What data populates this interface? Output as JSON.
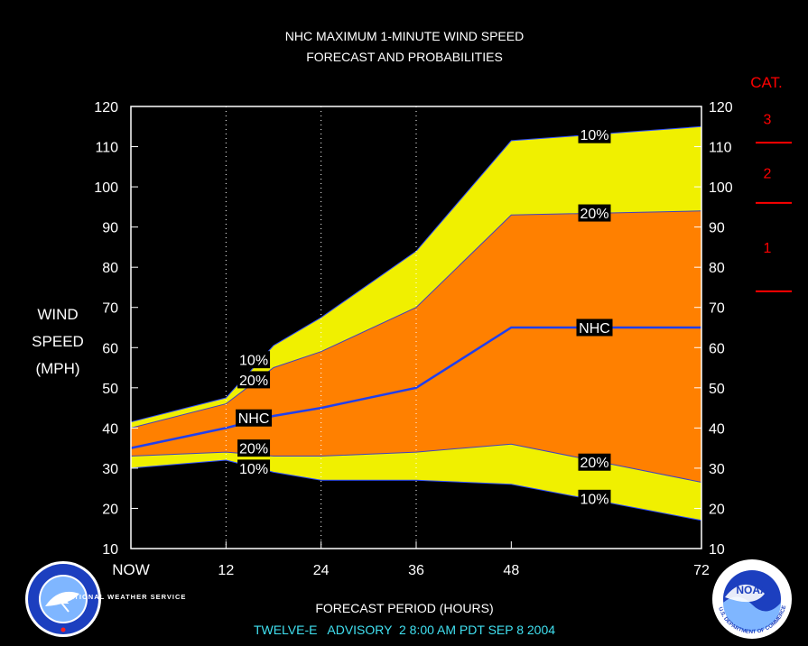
{
  "chart_data": {
    "type": "area",
    "title": "NHC MAXIMUM 1-MINUTE WIND SPEED",
    "subtitle": "FORECAST AND PROBABILITIES",
    "ylabel_lines": [
      "WIND",
      "SPEED",
      "(MPH)"
    ],
    "xlabel": "FORECAST PERIOD (HOURS)",
    "footer": "TWELVE-E   ADVISORY  2 8:00 AM PDT SEP 8 2004",
    "xlim": [
      0,
      72
    ],
    "ylim": [
      10,
      120
    ],
    "x_ticks": [
      {
        "x": 0,
        "label": "NOW"
      },
      {
        "x": 12,
        "label": "12"
      },
      {
        "x": 24,
        "label": "24"
      },
      {
        "x": 36,
        "label": "36"
      },
      {
        "x": 48,
        "label": "48"
      },
      {
        "x": 72,
        "label": "72"
      }
    ],
    "y_ticks": [
      10,
      20,
      30,
      40,
      50,
      60,
      70,
      80,
      90,
      100,
      110,
      120
    ],
    "vertical_dotted_gridlines_at": [
      12,
      24,
      36
    ],
    "x": [
      0,
      12,
      18,
      24,
      36,
      48,
      72
    ],
    "series": [
      {
        "name": "upper 10%",
        "values": [
          41.5,
          47.5,
          60.5,
          67.5,
          84,
          111.5,
          115
        ],
        "color": "#f0f000"
      },
      {
        "name": "upper 20%",
        "values": [
          40,
          46,
          55,
          59,
          70,
          93,
          94
        ],
        "color": "#ff8000"
      },
      {
        "name": "NHC",
        "values": [
          35,
          40,
          43,
          45,
          50,
          65,
          65
        ],
        "color": "#1f3ff0"
      },
      {
        "name": "lower 20%",
        "values": [
          33,
          34,
          33,
          33,
          34,
          36,
          26.5
        ],
        "color": "#ff8000"
      },
      {
        "name": "lower 10%",
        "values": [
          30,
          32,
          29,
          27,
          27,
          26,
          17
        ],
        "color": "#f0f000"
      }
    ],
    "labels": [
      {
        "text": "10%",
        "x": 15.5,
        "y": 57
      },
      {
        "text": "20%",
        "x": 15.5,
        "y": 52
      },
      {
        "text": "NHC",
        "x": 15.5,
        "y": 42.5
      },
      {
        "text": "20%",
        "x": 15.5,
        "y": 35
      },
      {
        "text": "10%",
        "x": 15.5,
        "y": 30
      },
      {
        "text": "10%",
        "x": 58.5,
        "y": 113
      },
      {
        "text": "20%",
        "x": 58.5,
        "y": 93.5
      },
      {
        "text": "NHC",
        "x": 58.5,
        "y": 65
      },
      {
        "text": "20%",
        "x": 58.5,
        "y": 31.5
      },
      {
        "text": "10%",
        "x": 58.5,
        "y": 22.5
      }
    ],
    "category_legend": {
      "title": "CAT.",
      "thresholds_mph": [
        74,
        96,
        111
      ],
      "category_labels": [
        {
          "label": "1",
          "y": 85
        },
        {
          "label": "2",
          "y": 103.5
        },
        {
          "label": "3",
          "y": 117
        }
      ],
      "color": "#ff0000"
    },
    "logos": {
      "left": {
        "name": "national-weather-service-seal",
        "text": "NATIONAL WEATHER SERVICE"
      },
      "right": {
        "name": "noaa-seal",
        "text": "NOAA",
        "ring_text": "U.S. DEPARTMENT OF COMMERCE"
      }
    }
  }
}
